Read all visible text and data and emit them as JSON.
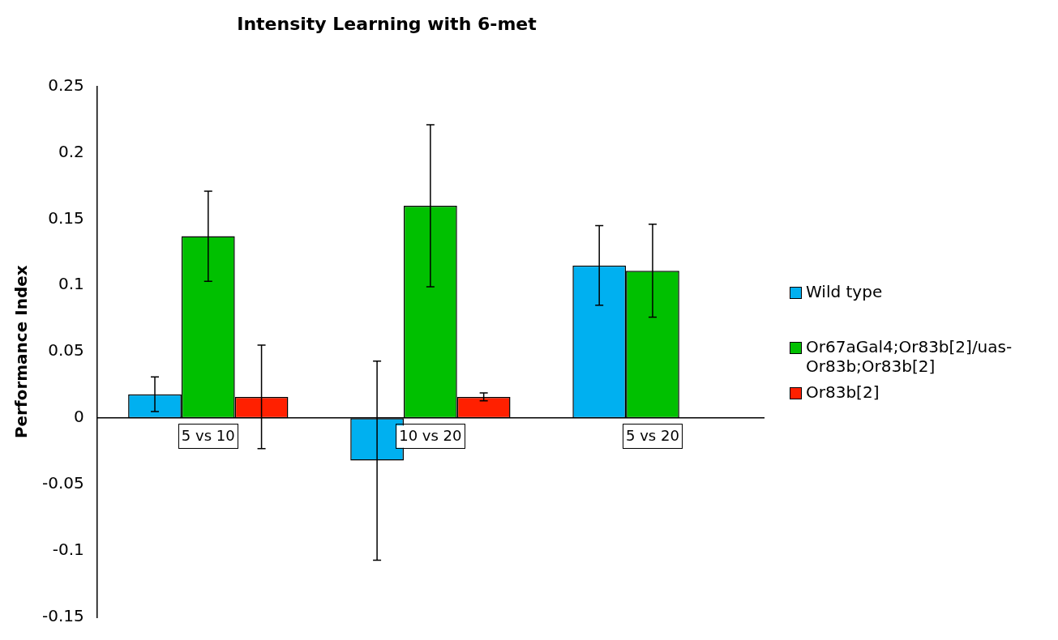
{
  "chart_data": {
    "type": "bar",
    "title": "Intensity Learning with 6-met",
    "ylabel": "Performance Index",
    "categories": [
      "5 vs 10",
      "10 vs 20",
      "5 vs 20"
    ],
    "series": [
      {
        "name": "Wild type",
        "color": "#00b0f0",
        "values": [
          0.018,
          -0.032,
          0.115
        ],
        "errors": [
          0.013,
          0.075,
          0.03
        ]
      },
      {
        "name": "Or67aGal4;Or83b[2]/uas-Or83b;Or83b[2]",
        "color": "#00c000",
        "values": [
          0.137,
          0.16,
          0.111
        ],
        "errors": [
          0.034,
          0.061,
          0.035
        ]
      },
      {
        "name": "Or83b[2]",
        "color": "#ff2000",
        "values": [
          0.016,
          0.016,
          null
        ],
        "errors": [
          0.039,
          0.003,
          null
        ]
      }
    ],
    "ylim": [
      -0.15,
      0.25
    ],
    "yticks": [
      0.25,
      0.2,
      0.15,
      0.1,
      0.05,
      0,
      -0.05,
      -0.1,
      -0.15
    ],
    "grid": false,
    "legend": "right"
  }
}
